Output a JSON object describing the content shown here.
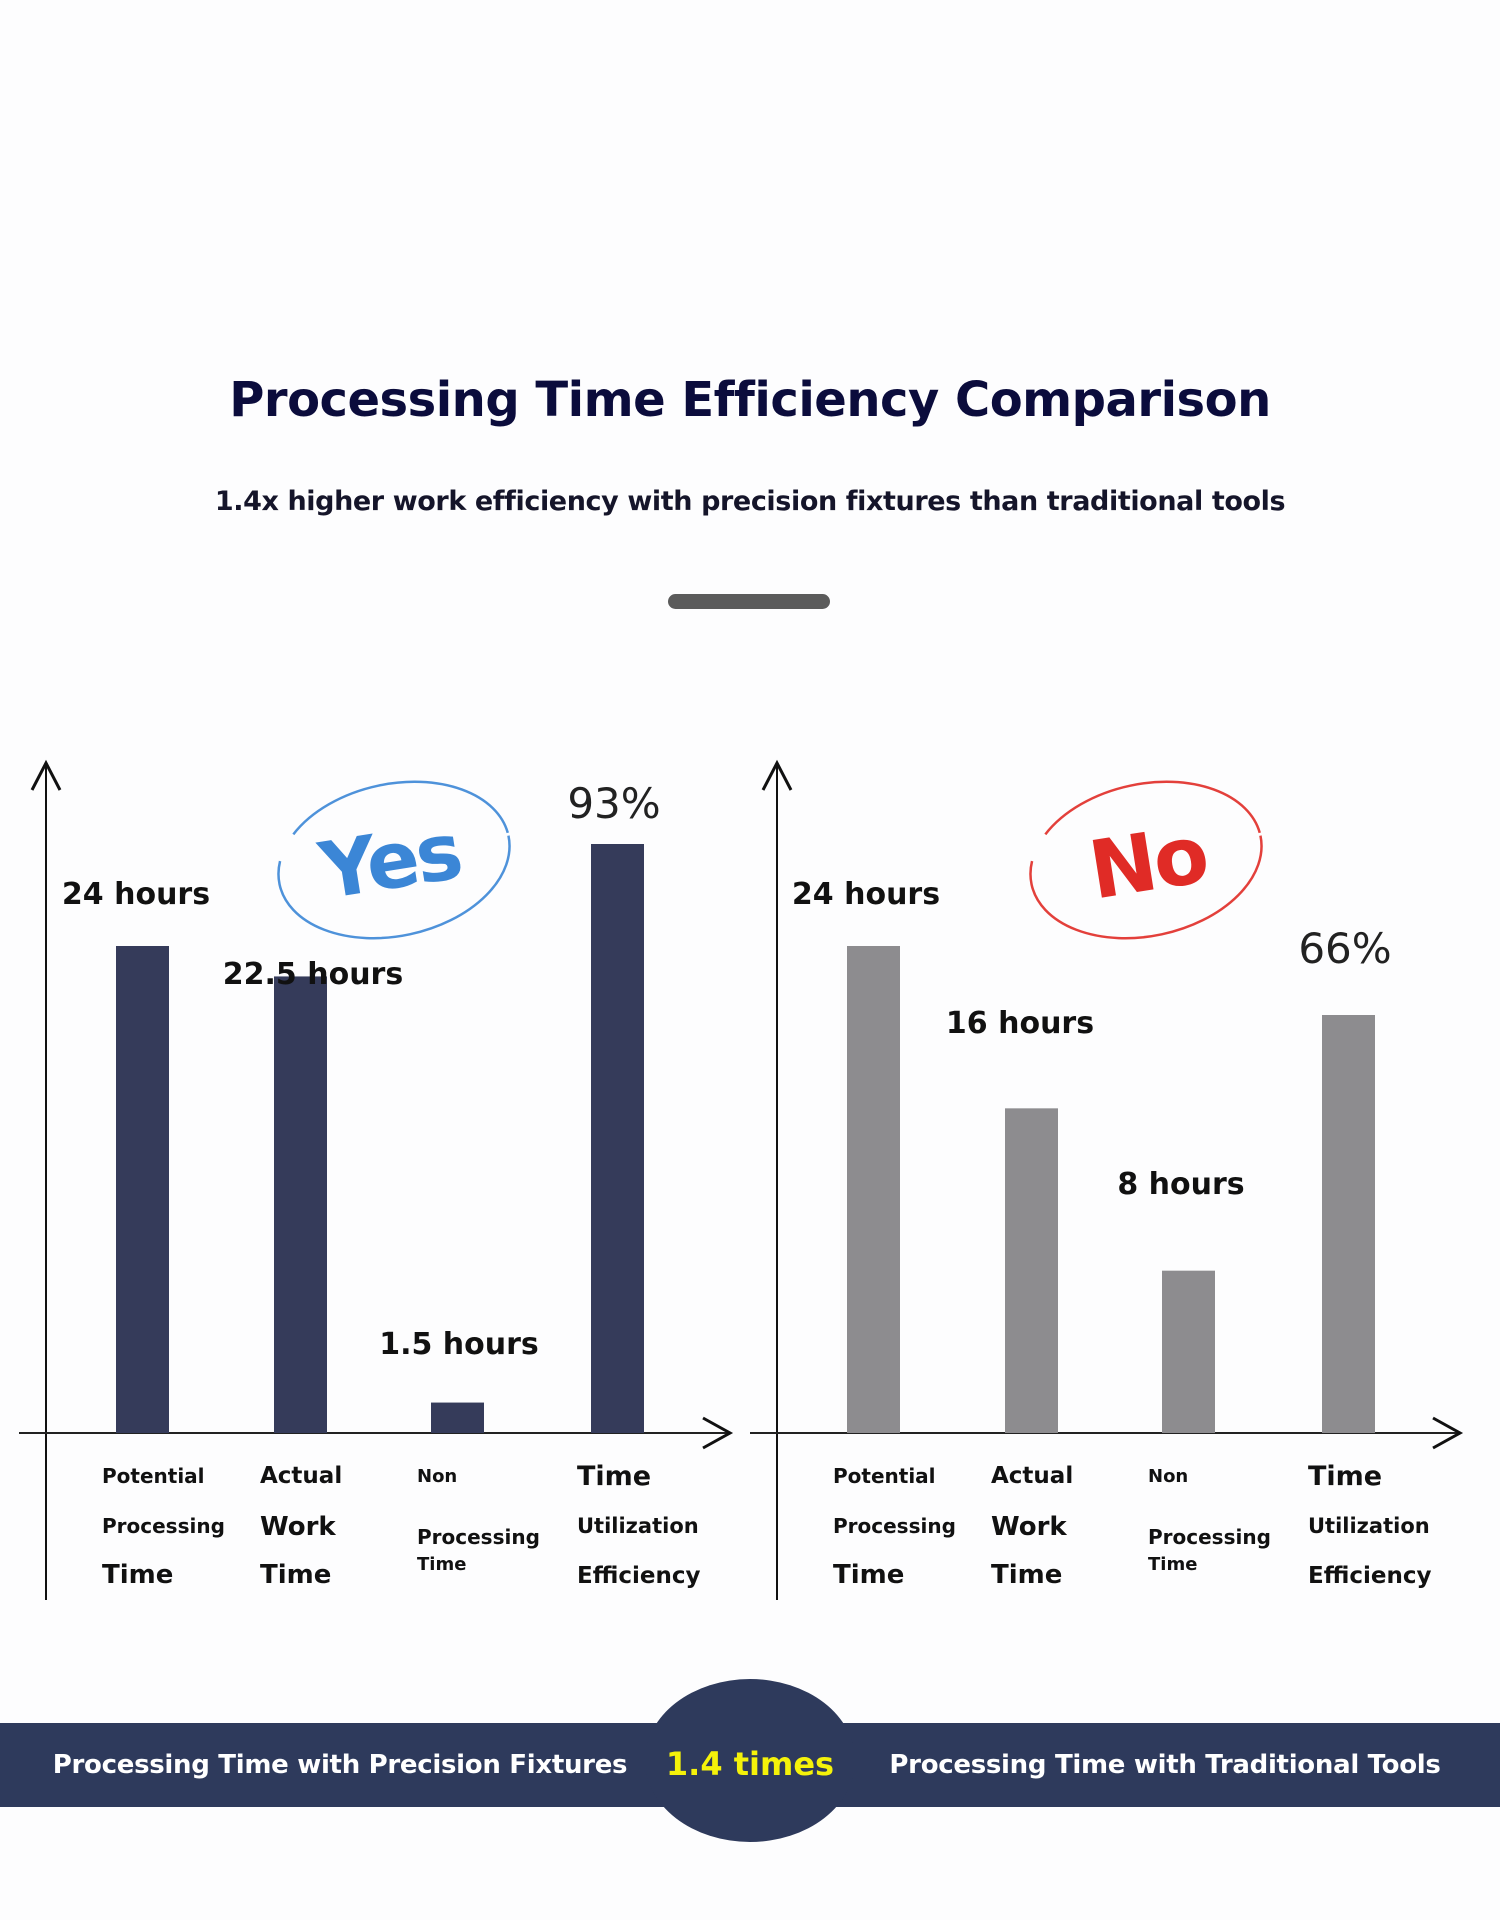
{
  "header": {
    "title": "Processing Time Efficiency Comparison",
    "subtitle": "1.4x higher work efficiency with precision fixtures than traditional tools"
  },
  "colors": {
    "title": "#0b0c3c",
    "precision_bar": "#353b5a",
    "traditional_bar": "#8d8c8f",
    "band": "#2e3a5c",
    "ratio_text": "#f5f20a",
    "yes_stamp": "#3b86d6",
    "no_stamp": "#e02b26"
  },
  "chart_data": [
    {
      "type": "bar",
      "title": "Processing Time with Precision Fixtures",
      "stamp": {
        "text": "Yes",
        "icon": "yes-stamp-icon"
      },
      "categories": [
        [
          "Potential",
          "Processing",
          "Time"
        ],
        [
          "Actual",
          "Work",
          "Time"
        ],
        [
          "Non",
          "Processing",
          "Time"
        ],
        [
          "Time",
          "Utilization",
          "Efficiency"
        ]
      ],
      "values": [
        24,
        22.5,
        1.5,
        93
      ],
      "units": [
        "hours",
        "hours",
        "hours",
        "%"
      ],
      "value_labels": [
        "24 hours",
        "22.5 hours",
        "1.5 hours",
        "93%"
      ],
      "xlabel": "",
      "ylabel": "",
      "ylim_hours": [
        0,
        24
      ],
      "ylim_percent": [
        0,
        100
      ],
      "grid": false,
      "legend": "none"
    },
    {
      "type": "bar",
      "title": "Processing Time with Traditional Tools",
      "stamp": {
        "text": "No",
        "icon": "no-stamp-icon"
      },
      "categories": [
        [
          "Potential",
          "Processing",
          "Time"
        ],
        [
          "Actual",
          "Work",
          "Time"
        ],
        [
          "Non",
          "Processing",
          "Time"
        ],
        [
          "Time",
          "Utilization",
          "Efficiency"
        ]
      ],
      "values": [
        24,
        16,
        8,
        66
      ],
      "units": [
        "hours",
        "hours",
        "hours",
        "%"
      ],
      "value_labels": [
        "24 hours",
        "16 hours",
        "8 hours",
        "66%"
      ],
      "xlabel": "",
      "ylabel": "",
      "ylim_hours": [
        0,
        24
      ],
      "ylim_percent": [
        0,
        100
      ],
      "grid": false,
      "legend": "none"
    }
  ],
  "footer": {
    "left_label": "Processing Time with Precision Fixtures",
    "ratio": "1.4 times",
    "right_label": "Processing Time with Traditional Tools"
  }
}
